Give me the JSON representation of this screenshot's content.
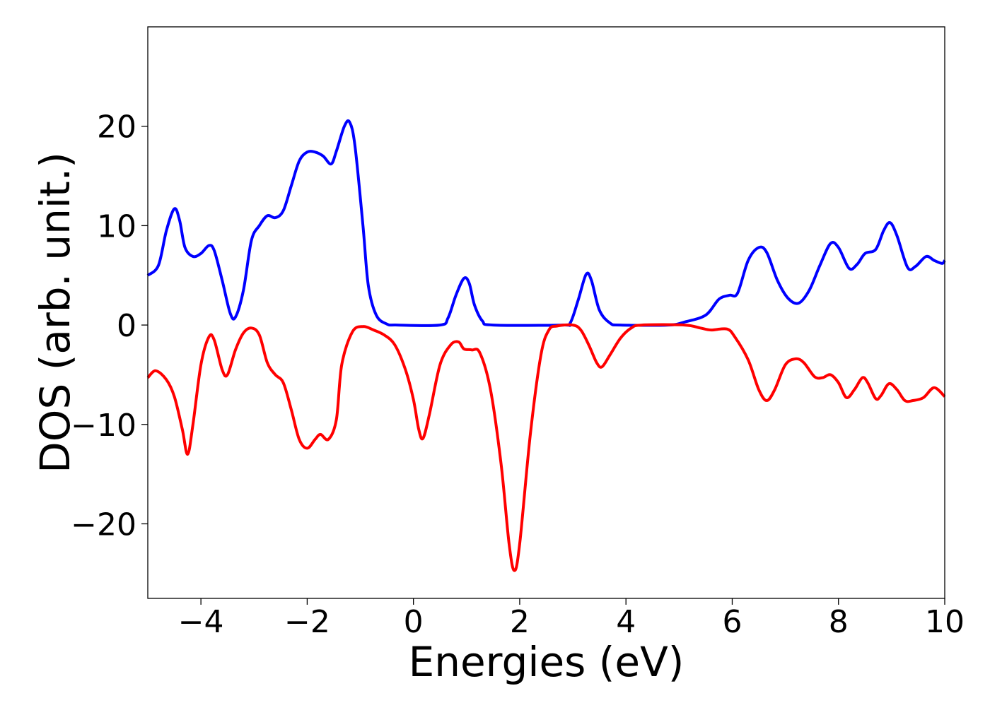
{
  "chart_data": {
    "type": "line",
    "title": "",
    "xlabel": "Energies (eV)",
    "ylabel": "DOS (arb. unit.)",
    "xlim": [
      -5,
      10
    ],
    "ylim": [
      -27.5,
      30
    ],
    "grid": false,
    "legend": "none",
    "x_ticks": [
      -4,
      -2,
      0,
      2,
      4,
      6,
      8,
      10
    ],
    "x_tick_labels": [
      "−4",
      "−2",
      "0",
      "2",
      "4",
      "6",
      "8",
      "10"
    ],
    "y_ticks": [
      -20,
      -10,
      0,
      10,
      20
    ],
    "y_tick_labels": [
      "−20",
      "−10",
      "0",
      "10",
      "20"
    ],
    "series": [
      {
        "color": "#0000ff",
        "points": [
          [
            -5.0,
            5.0
          ],
          [
            -4.8,
            6.0
          ],
          [
            -4.65,
            9.5
          ],
          [
            -4.5,
            11.7
          ],
          [
            -4.4,
            10.5
          ],
          [
            -4.3,
            7.8
          ],
          [
            -4.15,
            6.9
          ],
          [
            -4.0,
            7.2
          ],
          [
            -3.85,
            8.0
          ],
          [
            -3.75,
            7.5
          ],
          [
            -3.6,
            4.5
          ],
          [
            -3.45,
            1.2
          ],
          [
            -3.35,
            0.8
          ],
          [
            -3.2,
            3.5
          ],
          [
            -3.05,
            8.5
          ],
          [
            -2.9,
            10.0
          ],
          [
            -2.75,
            11.0
          ],
          [
            -2.6,
            10.8
          ],
          [
            -2.45,
            11.5
          ],
          [
            -2.3,
            14.0
          ],
          [
            -2.15,
            16.5
          ],
          [
            -2.0,
            17.4
          ],
          [
            -1.85,
            17.4
          ],
          [
            -1.7,
            17.0
          ],
          [
            -1.55,
            16.2
          ],
          [
            -1.45,
            17.5
          ],
          [
            -1.3,
            20.0
          ],
          [
            -1.2,
            20.4
          ],
          [
            -1.1,
            18.0
          ],
          [
            -0.95,
            10.0
          ],
          [
            -0.85,
            4.0
          ],
          [
            -0.7,
            1.0
          ],
          [
            -0.5,
            0.1
          ],
          [
            -0.3,
            0.0
          ],
          [
            0.5,
            0.0
          ],
          [
            0.65,
            0.7
          ],
          [
            0.8,
            3.0
          ],
          [
            0.95,
            4.7
          ],
          [
            1.05,
            4.2
          ],
          [
            1.15,
            2.0
          ],
          [
            1.3,
            0.4
          ],
          [
            1.5,
            0.0
          ],
          [
            2.8,
            0.0
          ],
          [
            2.95,
            0.2
          ],
          [
            3.1,
            2.5
          ],
          [
            3.25,
            5.1
          ],
          [
            3.35,
            4.5
          ],
          [
            3.5,
            1.5
          ],
          [
            3.7,
            0.2
          ],
          [
            3.9,
            0.0
          ],
          [
            4.8,
            0.0
          ],
          [
            5.1,
            0.3
          ],
          [
            5.5,
            1.0
          ],
          [
            5.75,
            2.6
          ],
          [
            5.95,
            3.0
          ],
          [
            6.1,
            3.2
          ],
          [
            6.3,
            6.5
          ],
          [
            6.5,
            7.8
          ],
          [
            6.65,
            7.3
          ],
          [
            6.85,
            4.5
          ],
          [
            7.05,
            2.7
          ],
          [
            7.25,
            2.2
          ],
          [
            7.45,
            3.5
          ],
          [
            7.65,
            6.0
          ],
          [
            7.85,
            8.2
          ],
          [
            8.0,
            7.8
          ],
          [
            8.2,
            5.7
          ],
          [
            8.35,
            6.1
          ],
          [
            8.5,
            7.2
          ],
          [
            8.7,
            7.6
          ],
          [
            8.85,
            9.5
          ],
          [
            8.97,
            10.3
          ],
          [
            9.1,
            9.0
          ],
          [
            9.3,
            5.8
          ],
          [
            9.45,
            5.9
          ],
          [
            9.65,
            6.9
          ],
          [
            9.8,
            6.5
          ],
          [
            9.95,
            6.2
          ],
          [
            10.0,
            6.5
          ]
        ]
      },
      {
        "color": "#ff0000",
        "points": [
          [
            -5.0,
            -5.3
          ],
          [
            -4.85,
            -4.6
          ],
          [
            -4.65,
            -5.5
          ],
          [
            -4.5,
            -7.2
          ],
          [
            -4.35,
            -10.5
          ],
          [
            -4.25,
            -13.0
          ],
          [
            -4.15,
            -10.0
          ],
          [
            -4.0,
            -4.0
          ],
          [
            -3.85,
            -1.2
          ],
          [
            -3.75,
            -1.5
          ],
          [
            -3.6,
            -4.5
          ],
          [
            -3.5,
            -5.0
          ],
          [
            -3.35,
            -2.5
          ],
          [
            -3.2,
            -0.8
          ],
          [
            -3.05,
            -0.3
          ],
          [
            -2.9,
            -1.0
          ],
          [
            -2.75,
            -3.8
          ],
          [
            -2.6,
            -5.0
          ],
          [
            -2.45,
            -5.8
          ],
          [
            -2.3,
            -8.5
          ],
          [
            -2.15,
            -11.5
          ],
          [
            -2.0,
            -12.4
          ],
          [
            -1.85,
            -11.5
          ],
          [
            -1.75,
            -11.0
          ],
          [
            -1.6,
            -11.5
          ],
          [
            -1.45,
            -9.5
          ],
          [
            -1.35,
            -4.0
          ],
          [
            -1.15,
            -0.7
          ],
          [
            -0.95,
            -0.15
          ],
          [
            -0.75,
            -0.5
          ],
          [
            -0.55,
            -1.0
          ],
          [
            -0.35,
            -2.0
          ],
          [
            -0.15,
            -4.5
          ],
          [
            0.0,
            -7.5
          ],
          [
            0.1,
            -10.5
          ],
          [
            0.18,
            -11.4
          ],
          [
            0.3,
            -9.0
          ],
          [
            0.5,
            -4.0
          ],
          [
            0.7,
            -2.0
          ],
          [
            0.85,
            -1.7
          ],
          [
            0.95,
            -2.4
          ],
          [
            1.1,
            -2.5
          ],
          [
            1.25,
            -2.8
          ],
          [
            1.45,
            -6.5
          ],
          [
            1.65,
            -14.0
          ],
          [
            1.8,
            -22.0
          ],
          [
            1.9,
            -24.7
          ],
          [
            2.0,
            -22.0
          ],
          [
            2.2,
            -11.0
          ],
          [
            2.4,
            -3.0
          ],
          [
            2.55,
            -0.5
          ],
          [
            2.7,
            -0.1
          ],
          [
            3.0,
            0.0
          ],
          [
            3.15,
            -0.5
          ],
          [
            3.3,
            -2.0
          ],
          [
            3.45,
            -3.8
          ],
          [
            3.55,
            -4.2
          ],
          [
            3.7,
            -3.0
          ],
          [
            3.9,
            -1.3
          ],
          [
            4.1,
            -0.3
          ],
          [
            4.3,
            0.0
          ],
          [
            5.1,
            0.0
          ],
          [
            5.4,
            -0.3
          ],
          [
            5.6,
            -0.5
          ],
          [
            5.9,
            -0.4
          ],
          [
            6.05,
            -1.2
          ],
          [
            6.3,
            -3.5
          ],
          [
            6.5,
            -6.5
          ],
          [
            6.65,
            -7.6
          ],
          [
            6.8,
            -6.5
          ],
          [
            7.0,
            -4.0
          ],
          [
            7.2,
            -3.4
          ],
          [
            7.35,
            -3.8
          ],
          [
            7.55,
            -5.2
          ],
          [
            7.7,
            -5.3
          ],
          [
            7.85,
            -5.0
          ],
          [
            8.0,
            -5.8
          ],
          [
            8.15,
            -7.3
          ],
          [
            8.3,
            -6.5
          ],
          [
            8.45,
            -5.3
          ],
          [
            8.55,
            -5.8
          ],
          [
            8.7,
            -7.4
          ],
          [
            8.8,
            -7.1
          ],
          [
            8.95,
            -5.9
          ],
          [
            9.1,
            -6.5
          ],
          [
            9.25,
            -7.6
          ],
          [
            9.4,
            -7.6
          ],
          [
            9.6,
            -7.3
          ],
          [
            9.8,
            -6.3
          ],
          [
            10.0,
            -7.2
          ]
        ]
      }
    ]
  }
}
